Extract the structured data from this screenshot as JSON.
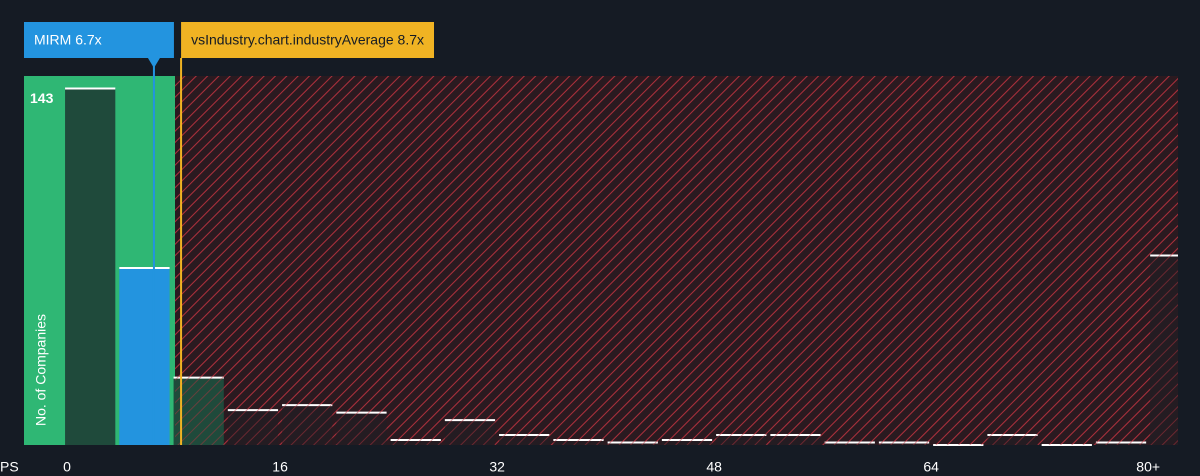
{
  "chart_data": {
    "type": "histogram",
    "x_label": "PS",
    "y_label": "No. of Companies",
    "bins": [
      0,
      4,
      8,
      12,
      16,
      20,
      24,
      28,
      32,
      36,
      40,
      44,
      48,
      52,
      56,
      60,
      64,
      68,
      72,
      76,
      80,
      84
    ],
    "values": [
      143,
      71,
      27,
      14,
      16,
      13,
      2,
      10,
      4,
      2,
      1,
      2,
      4,
      4,
      1,
      1,
      0,
      4,
      0,
      1,
      76
    ],
    "value_labels": [
      "143",
      null,
      null,
      null,
      null,
      null,
      null,
      null,
      null,
      null,
      null,
      null,
      null,
      null,
      null,
      null,
      null,
      null,
      null,
      null,
      null
    ],
    "xlim": [
      -2.88,
      82.2
    ],
    "ylim": [
      0,
      148
    ],
    "xticks": [
      0,
      16,
      32,
      48,
      64,
      {
        "value": 80,
        "label": "80+"
      }
    ],
    "color": "#1f4a3b",
    "highlight_color": "#2394df",
    "over_color": "#241c22",
    "company": {
      "label": "MIRM 6.7x",
      "value": 6.7,
      "color": "#2394df"
    },
    "industry": {
      "label": "vsIndustry.chart.industryAverage 8.7x",
      "value": 8.7,
      "color": "#f0b323"
    }
  }
}
